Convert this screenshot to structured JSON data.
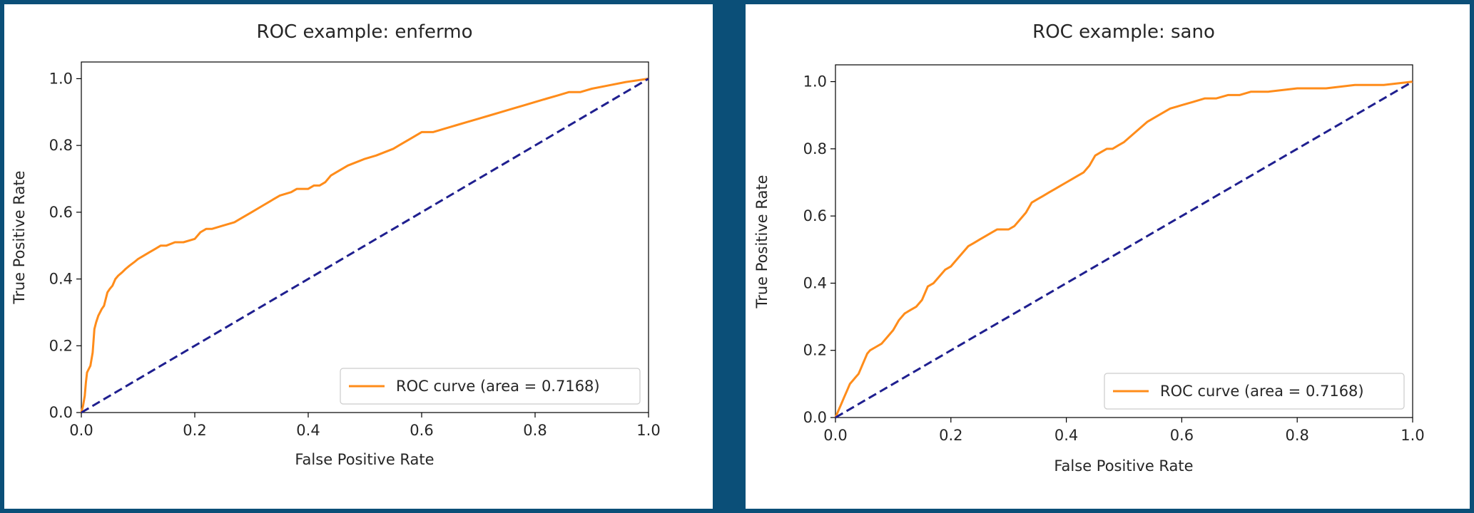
{
  "colors": {
    "background": "#0b4f78",
    "roc": "#ff8c1a",
    "diagonal": "#1f1f8f"
  },
  "chart_data": [
    {
      "type": "line",
      "title": "ROC example: enfermo",
      "xlabel": "False Positive Rate",
      "ylabel": "True Positive Rate",
      "xlim": [
        0.0,
        1.0
      ],
      "ylim": [
        0.0,
        1.05
      ],
      "xticks": [
        "0.0",
        "0.2",
        "0.4",
        "0.6",
        "0.8",
        "1.0"
      ],
      "yticks": [
        "0.0",
        "0.2",
        "0.4",
        "0.6",
        "0.8",
        "1.0"
      ],
      "legend_position": "lower-right",
      "series": [
        {
          "name": "ROC curve (area = 0.7168)",
          "color": "#ff8c1a",
          "x": [
            0.0,
            0.003,
            0.006,
            0.008,
            0.01,
            0.013,
            0.016,
            0.02,
            0.023,
            0.026,
            0.03,
            0.033,
            0.036,
            0.04,
            0.046,
            0.05,
            0.055,
            0.06,
            0.065,
            0.072,
            0.078,
            0.085,
            0.093,
            0.1,
            0.11,
            0.12,
            0.13,
            0.14,
            0.15,
            0.165,
            0.18,
            0.2,
            0.21,
            0.22,
            0.23,
            0.25,
            0.27,
            0.28,
            0.3,
            0.32,
            0.34,
            0.35,
            0.37,
            0.38,
            0.4,
            0.41,
            0.42,
            0.43,
            0.44,
            0.45,
            0.47,
            0.5,
            0.52,
            0.55,
            0.56,
            0.58,
            0.6,
            0.62,
            0.64,
            0.66,
            0.68,
            0.7,
            0.72,
            0.74,
            0.76,
            0.78,
            0.8,
            0.82,
            0.84,
            0.86,
            0.88,
            0.9,
            0.93,
            0.96,
            0.98,
            1.0
          ],
          "y": [
            0.0,
            0.02,
            0.05,
            0.09,
            0.12,
            0.13,
            0.14,
            0.18,
            0.25,
            0.27,
            0.29,
            0.3,
            0.31,
            0.32,
            0.36,
            0.37,
            0.38,
            0.4,
            0.41,
            0.42,
            0.43,
            0.44,
            0.45,
            0.46,
            0.47,
            0.48,
            0.49,
            0.5,
            0.5,
            0.51,
            0.51,
            0.52,
            0.54,
            0.55,
            0.55,
            0.56,
            0.57,
            0.58,
            0.6,
            0.62,
            0.64,
            0.65,
            0.66,
            0.67,
            0.67,
            0.68,
            0.68,
            0.69,
            0.71,
            0.72,
            0.74,
            0.76,
            0.77,
            0.79,
            0.8,
            0.82,
            0.84,
            0.84,
            0.85,
            0.86,
            0.87,
            0.88,
            0.89,
            0.9,
            0.91,
            0.92,
            0.93,
            0.94,
            0.95,
            0.96,
            0.96,
            0.97,
            0.98,
            0.99,
            0.995,
            1.0
          ]
        },
        {
          "name": "",
          "style": "dashed",
          "color": "#1f1f8f",
          "x": [
            0.0,
            1.0
          ],
          "y": [
            0.0,
            1.0
          ]
        }
      ]
    },
    {
      "type": "line",
      "title": "ROC example: sano",
      "xlabel": "False Positive Rate",
      "ylabel": "True Positive Rate",
      "xlim": [
        0.0,
        1.0
      ],
      "ylim": [
        0.0,
        1.05
      ],
      "xticks": [
        "0.0",
        "0.2",
        "0.4",
        "0.6",
        "0.8",
        "1.0"
      ],
      "yticks": [
        "0.0",
        "0.2",
        "0.4",
        "0.6",
        "0.8",
        "1.0"
      ],
      "legend_position": "lower-right",
      "series": [
        {
          "name": "ROC curve (area = 0.7168)",
          "color": "#ff8c1a",
          "x": [
            0.0,
            0.005,
            0.01,
            0.015,
            0.02,
            0.025,
            0.03,
            0.035,
            0.04,
            0.045,
            0.05,
            0.055,
            0.06,
            0.07,
            0.08,
            0.09,
            0.1,
            0.11,
            0.12,
            0.13,
            0.14,
            0.15,
            0.16,
            0.17,
            0.18,
            0.19,
            0.2,
            0.21,
            0.22,
            0.23,
            0.24,
            0.25,
            0.26,
            0.27,
            0.28,
            0.29,
            0.3,
            0.31,
            0.32,
            0.33,
            0.34,
            0.35,
            0.36,
            0.37,
            0.38,
            0.39,
            0.4,
            0.41,
            0.42,
            0.43,
            0.44,
            0.45,
            0.46,
            0.47,
            0.48,
            0.49,
            0.5,
            0.52,
            0.54,
            0.56,
            0.58,
            0.6,
            0.62,
            0.64,
            0.66,
            0.68,
            0.7,
            0.72,
            0.75,
            0.8,
            0.85,
            0.9,
            0.95,
            1.0
          ],
          "y": [
            0.0,
            0.02,
            0.04,
            0.06,
            0.08,
            0.1,
            0.11,
            0.12,
            0.13,
            0.15,
            0.17,
            0.19,
            0.2,
            0.21,
            0.22,
            0.24,
            0.26,
            0.29,
            0.31,
            0.32,
            0.33,
            0.35,
            0.39,
            0.4,
            0.42,
            0.44,
            0.45,
            0.47,
            0.49,
            0.51,
            0.52,
            0.53,
            0.54,
            0.55,
            0.56,
            0.56,
            0.56,
            0.57,
            0.59,
            0.61,
            0.64,
            0.65,
            0.66,
            0.67,
            0.68,
            0.69,
            0.7,
            0.71,
            0.72,
            0.73,
            0.75,
            0.78,
            0.79,
            0.8,
            0.8,
            0.81,
            0.82,
            0.85,
            0.88,
            0.9,
            0.92,
            0.93,
            0.94,
            0.95,
            0.95,
            0.96,
            0.96,
            0.97,
            0.97,
            0.98,
            0.98,
            0.99,
            0.99,
            1.0
          ]
        },
        {
          "name": "",
          "style": "dashed",
          "color": "#1f1f8f",
          "x": [
            0.0,
            1.0
          ],
          "y": [
            0.0,
            1.0
          ]
        }
      ]
    }
  ]
}
